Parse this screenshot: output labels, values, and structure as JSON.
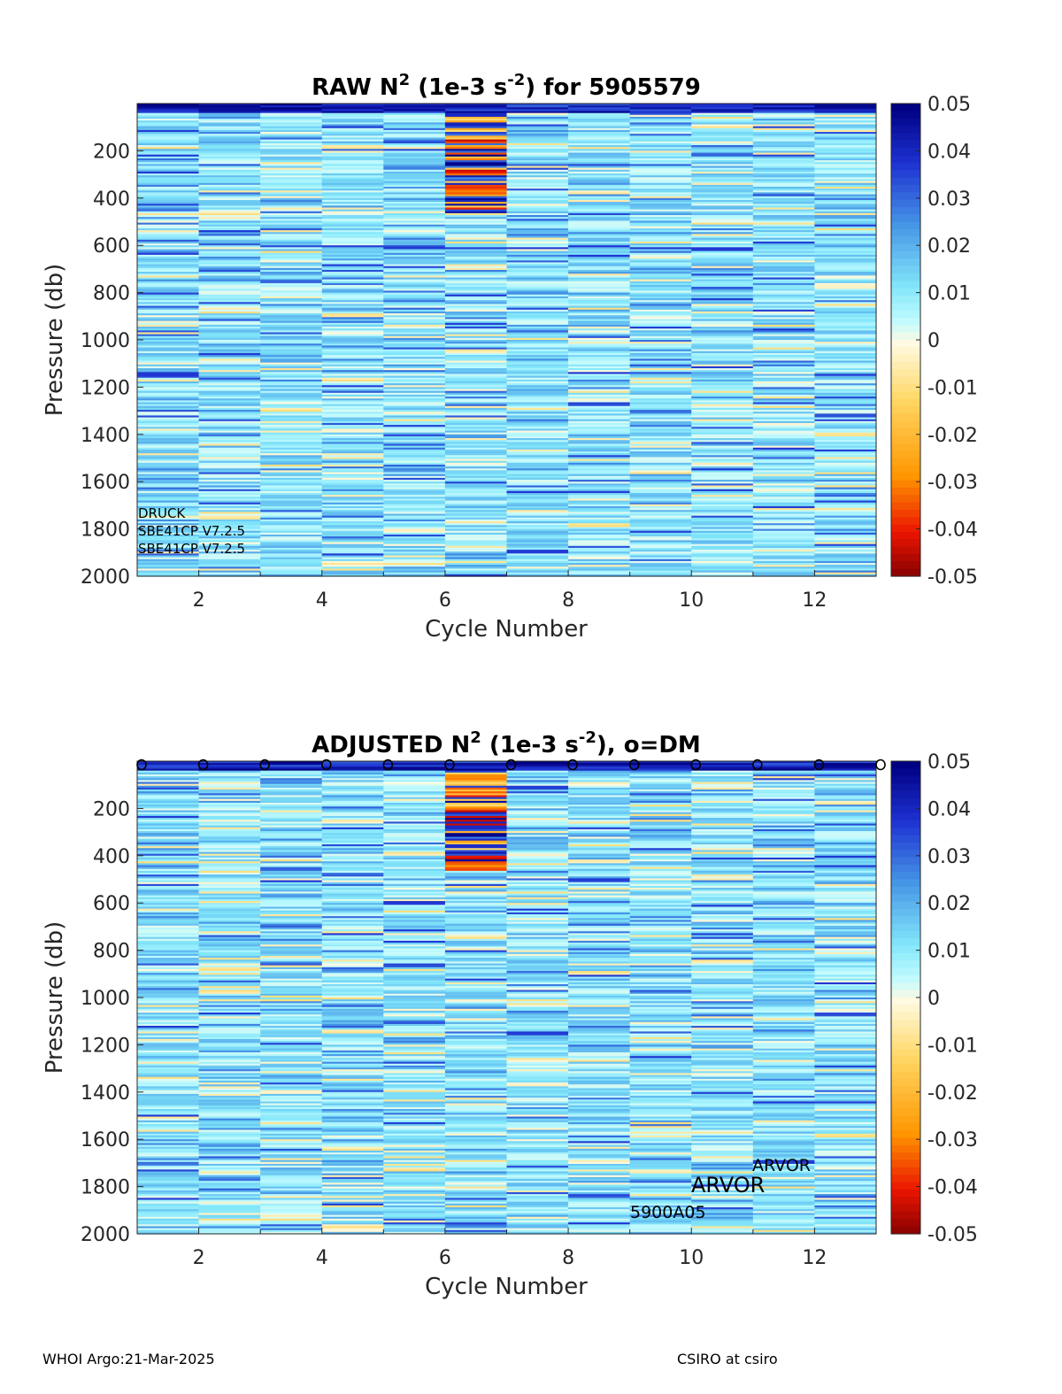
{
  "chart_data": [
    {
      "type": "heatmap",
      "title": "RAW N2 (1e-3 s-2) for 5905579",
      "title_parts": {
        "pre": "RAW N",
        "sup1": "2",
        "mid": " (1e-3 s",
        "sup2": "-2",
        "post": ") for 5905579"
      },
      "xlabel": "Cycle Number",
      "ylabel": "Pressure (db)",
      "xlim": [
        1,
        13
      ],
      "ylim": [
        0,
        2000
      ],
      "y_reversed": true,
      "xticks": [
        2,
        4,
        6,
        8,
        10,
        12
      ],
      "yticks": [
        200,
        400,
        600,
        800,
        1000,
        1200,
        1400,
        1600,
        1800,
        2000
      ],
      "cycles": [
        1,
        2,
        3,
        4,
        5,
        6,
        7,
        8,
        9,
        10,
        11,
        12
      ],
      "clim": [
        -0.05,
        0.05
      ],
      "colorbar_ticks": [
        "0.05",
        "0.04",
        "0.03",
        "0.02",
        "0.01",
        "0",
        "-0.01",
        "-0.02",
        "-0.03",
        "-0.04",
        "-0.05"
      ],
      "annotations": [
        "DRUCK",
        "SBE41CP V7.2.5",
        "SBE41CP V7.2.5"
      ]
    },
    {
      "type": "heatmap",
      "title": "ADJUSTED N2 (1e-3 s-2), o=DM",
      "title_parts": {
        "pre": "ADJUSTED N",
        "sup1": "2",
        "mid": " (1e-3 s",
        "sup2": "-2",
        "post": "), o=DM"
      },
      "xlabel": "Cycle Number",
      "ylabel": "Pressure (db)",
      "xlim": [
        1,
        13
      ],
      "ylim": [
        0,
        2000
      ],
      "y_reversed": true,
      "xticks": [
        2,
        4,
        6,
        8,
        10,
        12
      ],
      "yticks": [
        200,
        400,
        600,
        800,
        1000,
        1200,
        1400,
        1600,
        1800,
        2000
      ],
      "cycles": [
        1,
        2,
        3,
        4,
        5,
        6,
        7,
        8,
        9,
        10,
        11,
        12
      ],
      "clim": [
        -0.05,
        0.05
      ],
      "colorbar_ticks": [
        "0.05",
        "0.04",
        "0.03",
        "0.02",
        "0.01",
        "0",
        "-0.01",
        "-0.02",
        "-0.03",
        "-0.04",
        "-0.05"
      ],
      "dm_marker": "o",
      "dm_cycles": [
        1,
        2,
        3,
        4,
        5,
        6,
        7,
        8,
        9,
        10,
        11,
        12,
        13
      ],
      "annotations": [
        "ARVOR",
        "ARVOR",
        "5900A05"
      ]
    }
  ],
  "footer": {
    "left": "WHOI Argo:21-Mar-2025",
    "right": "CSIRO at csiro"
  }
}
